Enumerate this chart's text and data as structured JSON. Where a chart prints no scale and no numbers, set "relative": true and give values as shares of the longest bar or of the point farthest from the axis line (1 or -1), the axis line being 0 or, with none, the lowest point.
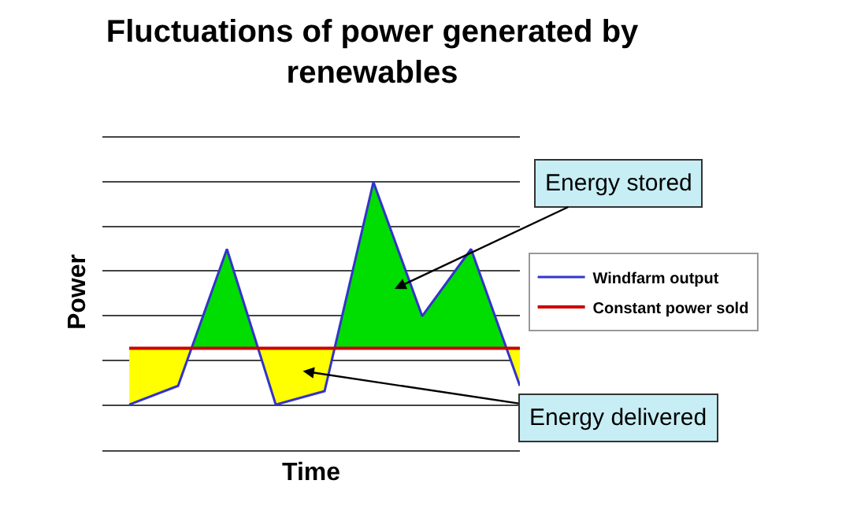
{
  "chart_data": {
    "type": "line",
    "title": "Fluctuations of power generated by renewables",
    "xlabel": "Time",
    "ylabel": "Power",
    "relative": true,
    "grid": "y",
    "legend": "right",
    "categories": [
      null,
      null,
      null,
      null,
      null,
      null,
      null,
      null,
      null
    ],
    "series": [
      {
        "name": "Windfarm output",
        "color": "#3333cc",
        "values": [
          0.17,
          0.24,
          0.75,
          0.17,
          0.22,
          1,
          0.5,
          0.75,
          0.24
        ]
      },
      {
        "name": "Constant power sold",
        "color": "#cc0000",
        "values": [
          0.38,
          0.38,
          0.38,
          0.38,
          0.38,
          0.38,
          0.38,
          0.38,
          0.38
        ]
      }
    ],
    "annotations": [
      "Energy stored",
      "Energy delivered"
    ]
  }
}
